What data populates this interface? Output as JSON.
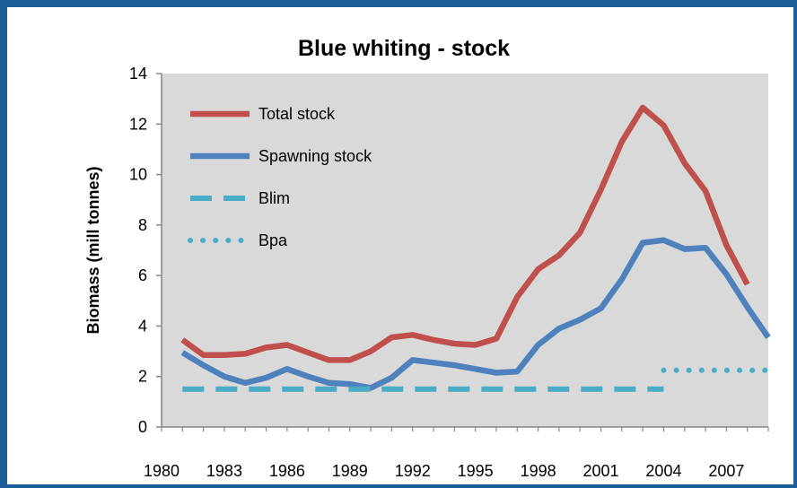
{
  "chart_data": {
    "type": "line",
    "title": "Blue whiting - stock",
    "xlabel": "",
    "ylabel": "Biomass (mill tonnes)",
    "xlim": [
      1980,
      2009
    ],
    "ylim": [
      0,
      14
    ],
    "ytick_labels": [
      "0",
      "2",
      "4",
      "6",
      "8",
      "10",
      "12",
      "14"
    ],
    "xtick_labels": [
      "1980",
      "1983",
      "1986",
      "1989",
      "1992",
      "1995",
      "1998",
      "2001",
      "2004",
      "2007"
    ],
    "grid": false,
    "legend_position": "top-left",
    "series": [
      {
        "name": "Total stock",
        "color": "#c0504d",
        "style": "solid",
        "x": [
          1981,
          1982,
          1983,
          1984,
          1985,
          1986,
          1987,
          1988,
          1989,
          1990,
          1991,
          1992,
          1993,
          1994,
          1995,
          1996,
          1997,
          1998,
          1999,
          2000,
          2001,
          2002,
          2003,
          2004,
          2005,
          2006,
          2007,
          2008
        ],
        "values": [
          3.45,
          2.85,
          2.85,
          2.9,
          3.15,
          3.25,
          2.95,
          2.65,
          2.65,
          3.0,
          3.55,
          3.65,
          3.45,
          3.3,
          3.25,
          3.5,
          5.15,
          6.25,
          6.8,
          7.7,
          9.4,
          11.3,
          12.65,
          11.95,
          10.45,
          9.35,
          7.2,
          5.65
        ]
      },
      {
        "name": "Spawning stock",
        "color": "#4f81bd",
        "style": "solid",
        "x": [
          1981,
          1982,
          1983,
          1984,
          1985,
          1986,
          1987,
          1988,
          1989,
          1990,
          1991,
          1992,
          1993,
          1994,
          1995,
          1996,
          1997,
          1998,
          1999,
          2000,
          2001,
          2002,
          2003,
          2004,
          2005,
          2006,
          2007,
          2008,
          2009
        ],
        "values": [
          2.95,
          2.45,
          2.0,
          1.75,
          1.95,
          2.3,
          2.0,
          1.75,
          1.7,
          1.55,
          1.95,
          2.65,
          2.55,
          2.45,
          2.3,
          2.15,
          2.2,
          3.25,
          3.9,
          4.25,
          4.7,
          5.85,
          7.3,
          7.4,
          7.05,
          7.1,
          6.05,
          4.75,
          3.55
        ]
      },
      {
        "name": "Blim",
        "color": "#4bacc6",
        "style": "dashed",
        "x": [
          1981,
          2004
        ],
        "values": [
          1.5,
          1.5
        ]
      },
      {
        "name": "Bpa",
        "color": "#4bacc6",
        "style": "dotted",
        "x": [
          2004,
          2009
        ],
        "values": [
          2.25,
          2.25
        ]
      }
    ]
  }
}
